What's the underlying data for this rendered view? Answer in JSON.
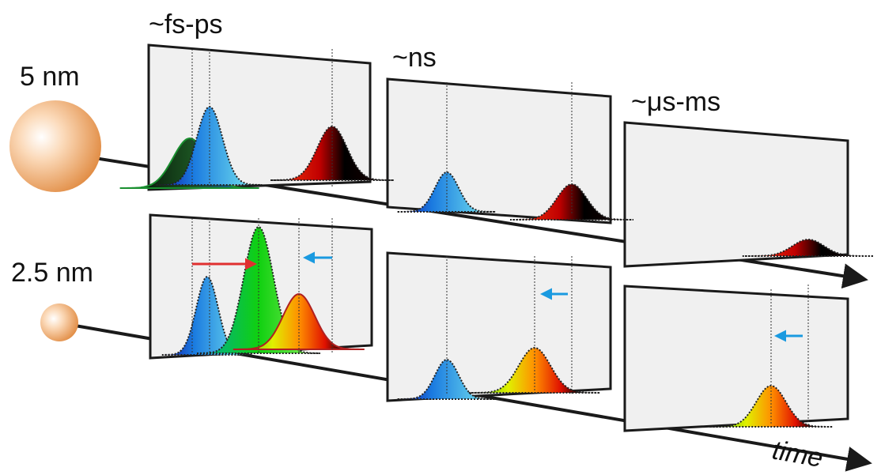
{
  "labels": {
    "fast": "~fs-ps",
    "mid": "~ns",
    "slow": "~μs-ms",
    "large": "5 nm",
    "small": "2.5 nm",
    "axis": "time"
  }
}
